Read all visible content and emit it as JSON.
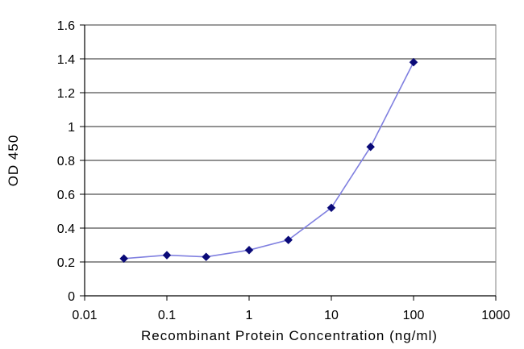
{
  "chart_data": {
    "type": "line",
    "title": "",
    "xlabel": "Recombinant Protein Concentration (ng/ml)",
    "ylabel": "OD 450",
    "xscale": "log",
    "xlim": [
      0.01,
      1000
    ],
    "ylim": [
      0,
      1.6
    ],
    "x_ticks": [
      0.01,
      0.1,
      1,
      10,
      100,
      1000
    ],
    "x_tick_labels": [
      "0.01",
      "0.1",
      "1",
      "10",
      "100",
      "1000"
    ],
    "y_ticks": [
      0,
      0.2,
      0.4,
      0.6,
      0.8,
      1,
      1.2,
      1.4,
      1.6
    ],
    "y_tick_labels": [
      "0",
      "0.2",
      "0.4",
      "0.6",
      "0.8",
      "1",
      "1.2",
      "1.4",
      "1.6"
    ],
    "grid": "horizontal",
    "legend": "none",
    "series": [
      {
        "x": [
          0.03,
          0.1,
          0.3,
          1,
          3,
          10,
          30,
          100
        ],
        "values": [
          0.22,
          0.24,
          0.23,
          0.27,
          0.33,
          0.52,
          0.88,
          1.38
        ],
        "line_color": "#8080e0",
        "marker_color": "#0a0a78"
      }
    ]
  }
}
